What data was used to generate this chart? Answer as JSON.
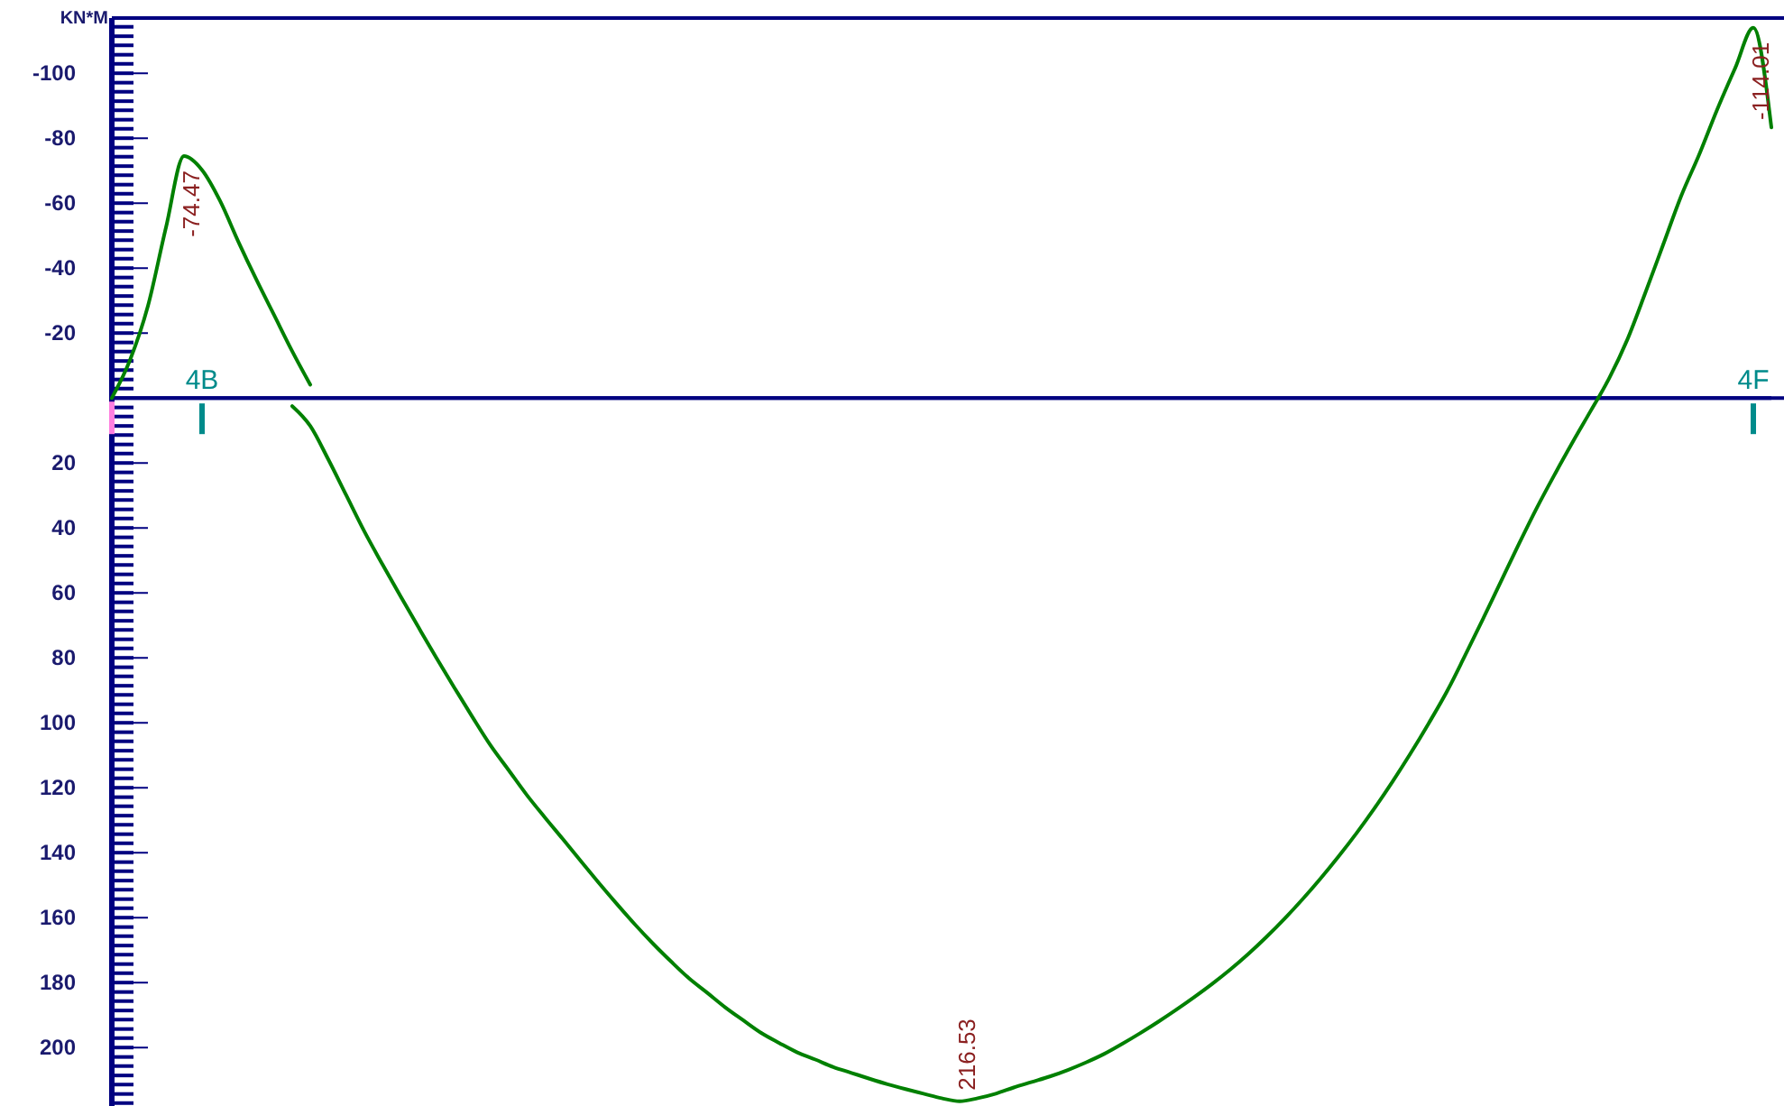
{
  "chart_data": {
    "type": "line",
    "ylabel": "KN*M",
    "categories": [
      null,
      null,
      null,
      null,
      null,
      "4B",
      null,
      null,
      null,
      null,
      null,
      null,
      null,
      null,
      null,
      null,
      null,
      null,
      null,
      null,
      null,
      null,
      null,
      null,
      null,
      null,
      null,
      null,
      null,
      null,
      null,
      null,
      null,
      null,
      null,
      null,
      null,
      null,
      null,
      null,
      null,
      null,
      null,
      null,
      null,
      null,
      null,
      null,
      null,
      null,
      null,
      null,
      null,
      null,
      null,
      null,
      null,
      null,
      null,
      null,
      null,
      null,
      null,
      null,
      null,
      null,
      null,
      null,
      null,
      null,
      null,
      null,
      null,
      null,
      null,
      null,
      null,
      null,
      null,
      null,
      null,
      null,
      null,
      null,
      null,
      null,
      null,
      null,
      null,
      null,
      null,
      "4F",
      null
    ],
    "ylim": [
      218,
      -117
    ],
    "yticks": [
      {
        "value": -114.3,
        "label": null
      },
      {
        "value": -111.4,
        "label": null
      },
      {
        "value": -108.6,
        "label": null
      },
      {
        "value": -105.7,
        "label": null
      },
      {
        "value": -102.9,
        "label": null
      },
      -100,
      {
        "value": -97.1,
        "label": null
      },
      {
        "value": -94.3,
        "label": null
      },
      {
        "value": -91.4,
        "label": null
      },
      {
        "value": -88.6,
        "label": null
      },
      {
        "value": -85.7,
        "label": null
      },
      {
        "value": -82.9,
        "label": null
      },
      -80,
      {
        "value": -77.1,
        "label": null
      },
      {
        "value": -74.3,
        "label": null
      },
      {
        "value": -71.4,
        "label": null
      },
      {
        "value": -68.6,
        "label": null
      },
      {
        "value": -65.7,
        "label": null
      },
      {
        "value": -62.9,
        "label": null
      },
      -60,
      {
        "value": -57.1,
        "label": null
      },
      {
        "value": -54.3,
        "label": null
      },
      {
        "value": -51.4,
        "label": null
      },
      {
        "value": -48.6,
        "label": null
      },
      {
        "value": -45.7,
        "label": null
      },
      {
        "value": -42.9,
        "label": null
      },
      -40,
      {
        "value": -37.1,
        "label": null
      },
      {
        "value": -34.3,
        "label": null
      },
      {
        "value": -31.4,
        "label": null
      },
      {
        "value": -28.6,
        "label": null
      },
      {
        "value": -25.7,
        "label": null
      },
      {
        "value": -22.9,
        "label": null
      },
      -20,
      {
        "value": -17.1,
        "label": null
      },
      {
        "value": -14.3,
        "label": null
      },
      {
        "value": -11.4,
        "label": null
      },
      {
        "value": -8.6,
        "label": null
      },
      {
        "value": -5.7,
        "label": null
      },
      {
        "value": -2.9,
        "label": null
      },
      {
        "value": 2.9,
        "label": null
      },
      {
        "value": 5.7,
        "label": null
      },
      {
        "value": 8.6,
        "label": null
      },
      {
        "value": 11.4,
        "label": null
      },
      {
        "value": 14.3,
        "label": null
      },
      {
        "value": 17.1,
        "label": null
      },
      20,
      {
        "value": 22.9,
        "label": null
      },
      {
        "value": 25.7,
        "label": null
      },
      {
        "value": 28.6,
        "label": null
      },
      {
        "value": 31.4,
        "label": null
      },
      {
        "value": 34.3,
        "label": null
      },
      {
        "value": 37.1,
        "label": null
      },
      40,
      {
        "value": 42.9,
        "label": null
      },
      {
        "value": 45.7,
        "label": null
      },
      {
        "value": 48.6,
        "label": null
      },
      {
        "value": 51.4,
        "label": null
      },
      {
        "value": 54.3,
        "label": null
      },
      {
        "value": 57.1,
        "label": null
      },
      60,
      {
        "value": 62.9,
        "label": null
      },
      {
        "value": 65.7,
        "label": null
      },
      {
        "value": 68.6,
        "label": null
      },
      {
        "value": 71.4,
        "label": null
      },
      {
        "value": 74.3,
        "label": null
      },
      {
        "value": 77.1,
        "label": null
      },
      80,
      {
        "value": 82.9,
        "label": null
      },
      {
        "value": 85.7,
        "label": null
      },
      {
        "value": 88.6,
        "label": null
      },
      {
        "value": 91.4,
        "label": null
      },
      {
        "value": 94.3,
        "label": null
      },
      {
        "value": 97.1,
        "label": null
      },
      100,
      {
        "value": 102.9,
        "label": null
      },
      {
        "value": 105.7,
        "label": null
      },
      {
        "value": 108.6,
        "label": null
      },
      {
        "value": 111.4,
        "label": null
      },
      {
        "value": 114.3,
        "label": null
      },
      {
        "value": 117.1,
        "label": null
      },
      120,
      {
        "value": 122.9,
        "label": null
      },
      {
        "value": 125.7,
        "label": null
      },
      {
        "value": 128.6,
        "label": null
      },
      {
        "value": 131.4,
        "label": null
      },
      {
        "value": 134.3,
        "label": null
      },
      {
        "value": 137.1,
        "label": null
      },
      140,
      {
        "value": 142.9,
        "label": null
      },
      {
        "value": 145.7,
        "label": null
      },
      {
        "value": 148.6,
        "label": null
      },
      {
        "value": 151.4,
        "label": null
      },
      {
        "value": 154.3,
        "label": null
      },
      {
        "value": 157.1,
        "label": null
      },
      160,
      {
        "value": 162.9,
        "label": null
      },
      {
        "value": 165.7,
        "label": null
      },
      {
        "value": 168.6,
        "label": null
      },
      {
        "value": 171.4,
        "label": null
      },
      {
        "value": 174.3,
        "label": null
      },
      {
        "value": 177.1,
        "label": null
      },
      180,
      {
        "value": 182.9,
        "label": null
      },
      {
        "value": 185.7,
        "label": null
      },
      {
        "value": 188.6,
        "label": null
      },
      {
        "value": 191.4,
        "label": null
      },
      {
        "value": 194.3,
        "label": null
      },
      {
        "value": 197.1,
        "label": null
      },
      200,
      {
        "value": 202.9,
        "label": null
      },
      {
        "value": 205.7,
        "label": null
      },
      {
        "value": 208.6,
        "label": null
      },
      {
        "value": 211.4,
        "label": null
      },
      {
        "value": 214.3,
        "label": null
      },
      {
        "value": 217.1,
        "label": null
      }
    ],
    "series": [
      {
        "color": "#008000",
        "values": [
          0,
          -11.6,
          -28.3,
          -52.5,
          -74.47,
          -70.2,
          -60.7,
          -48.3,
          -36.6,
          -25.5,
          -14.4,
          -4.1,
          null,
          null,
          null,
          null,
          null,
          null,
          null,
          null,
          null,
          null,
          null,
          null,
          null,
          null,
          null,
          null,
          null,
          null,
          null,
          null,
          null,
          null,
          null,
          null,
          null,
          null,
          null,
          null,
          null,
          null,
          null,
          null,
          null,
          null,
          null,
          null,
          null,
          null,
          null,
          null,
          null,
          null,
          null,
          null,
          null,
          null,
          null,
          null,
          null,
          null,
          null,
          null,
          null,
          null,
          null,
          null,
          null,
          null,
          null,
          null,
          null,
          null,
          null,
          null,
          null,
          null,
          null,
          null,
          null,
          null,
          null,
          null,
          null,
          null,
          null,
          null,
          null,
          null,
          null,
          null,
          null
        ],
        "value_labels": [
          null,
          null,
          null,
          null,
          "-74.47",
          null,
          null,
          null,
          null,
          null,
          null,
          null,
          null,
          null,
          null,
          null,
          null,
          null,
          null,
          null,
          null,
          null,
          null,
          null,
          null,
          null,
          null,
          null,
          null,
          null,
          null,
          null,
          null,
          null,
          null,
          null,
          null,
          null,
          null,
          null,
          null,
          null,
          null,
          null,
          null,
          null,
          null,
          null,
          null,
          null,
          null,
          null,
          null,
          null,
          null,
          null,
          null,
          null,
          null,
          null,
          null,
          null,
          null,
          null,
          null,
          null,
          null,
          null,
          null,
          null,
          null,
          null,
          null,
          null,
          null,
          null,
          null,
          null,
          null,
          null,
          null,
          null,
          null,
          null,
          null,
          null,
          null,
          null,
          null,
          null,
          null,
          null,
          null
        ]
      },
      {
        "color": "#008000",
        "values": [
          null,
          null,
          null,
          null,
          null,
          null,
          null,
          null,
          null,
          null,
          2.5,
          8.6,
          18.9,
          30,
          41.1,
          51.2,
          61,
          70.6,
          80.1,
          89.3,
          98.3,
          107,
          114.6,
          122.2,
          129.1,
          135.8,
          142.6,
          149.3,
          155.8,
          162.1,
          168,
          173.5,
          178.7,
          183.1,
          187.6,
          191.6,
          195.5,
          198.6,
          201.5,
          203.7,
          206,
          207.8,
          209.6,
          211.3,
          212.8,
          214.2,
          215.6,
          216.53,
          215.6,
          214.2,
          212.3,
          210.6,
          208.9,
          206.9,
          204.6,
          202,
          198.9,
          195.6,
          192.1,
          188.4,
          184.5,
          180.4,
          176,
          171.2,
          166,
          160.4,
          154.4,
          148,
          141.2,
          134,
          126.3,
          118.1,
          109.4,
          100.2,
          90.5,
          79.5,
          68.2,
          56.6,
          45,
          33.8,
          23.4,
          13.4,
          3.8,
          -6,
          -17.8,
          -32.2,
          -47.2,
          -62.2,
          -75,
          -88.9,
          -101.7,
          -114.01,
          -83.3
        ],
        "value_labels": [
          null,
          null,
          null,
          null,
          null,
          null,
          null,
          null,
          null,
          null,
          null,
          null,
          null,
          null,
          null,
          null,
          null,
          null,
          null,
          null,
          null,
          null,
          null,
          null,
          null,
          null,
          null,
          null,
          null,
          null,
          null,
          null,
          null,
          null,
          null,
          null,
          null,
          null,
          null,
          null,
          null,
          null,
          null,
          null,
          null,
          null,
          null,
          "216.53",
          null,
          null,
          null,
          null,
          null,
          null,
          null,
          null,
          null,
          null,
          null,
          null,
          null,
          null,
          null,
          null,
          null,
          null,
          null,
          null,
          null,
          null,
          null,
          null,
          null,
          null,
          null,
          null,
          null,
          null,
          null,
          null,
          null,
          null,
          null,
          null,
          null,
          null,
          null,
          null,
          null,
          null,
          null,
          "-114.01",
          null
        ]
      }
    ]
  }
}
